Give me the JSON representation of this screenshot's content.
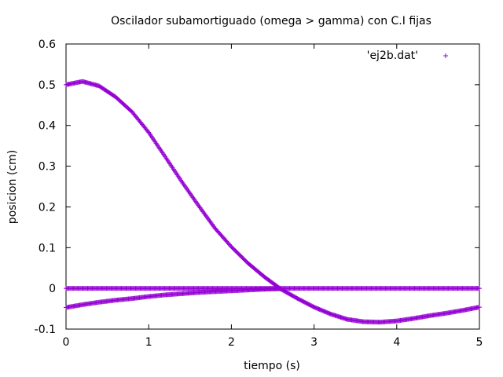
{
  "chart_data": {
    "type": "scatter",
    "title": "Oscilador subamortiguado (omega > gamma) con C.I fijas",
    "xlabel": "tiempo (s)",
    "ylabel": "posicion (cm)",
    "xlim": [
      0,
      5
    ],
    "ylim": [
      -0.1,
      0.6
    ],
    "x_ticks": [
      "0",
      "1",
      "2",
      "3",
      "4",
      "5"
    ],
    "y_ticks": [
      "-0.1",
      "0",
      "0.1",
      "0.2",
      "0.3",
      "0.4",
      "0.5",
      "0.6"
    ],
    "grid": false,
    "legend_position": "top-right",
    "marker": "+",
    "color": "#9400d3",
    "series": [
      {
        "name": "'ej2b.dat'",
        "x": [
          0,
          0.2,
          0.4,
          0.6,
          0.8,
          1.0,
          1.2,
          1.4,
          1.6,
          1.8,
          2.0,
          2.2,
          2.4,
          2.6,
          2.8,
          3.0,
          3.2,
          3.4,
          3.6,
          3.8,
          4.0,
          4.2,
          4.4,
          4.6,
          4.8,
          5.0
        ],
        "y": [
          0.5,
          0.508,
          0.497,
          0.47,
          0.433,
          0.383,
          0.323,
          0.262,
          0.204,
          0.148,
          0.102,
          0.062,
          0.028,
          -0.002,
          -0.025,
          -0.046,
          -0.063,
          -0.076,
          -0.082,
          -0.083,
          -0.08,
          -0.074,
          -0.067,
          -0.061,
          -0.054,
          -0.046
        ]
      },
      {
        "name": "",
        "x": [
          0,
          0.5,
          1.0,
          1.5,
          2.0,
          2.5,
          3.0,
          3.5,
          4.0,
          4.5,
          5.0
        ],
        "y": [
          0,
          0,
          0,
          0,
          0,
          0,
          0,
          0,
          0,
          0,
          0
        ]
      },
      {
        "name": "",
        "x": [
          0,
          0.2,
          0.4,
          0.6,
          0.8,
          1.0,
          1.2,
          1.4,
          1.6,
          1.8,
          2.0,
          2.2,
          2.4,
          2.6
        ],
        "y": [
          -0.047,
          -0.04,
          -0.034,
          -0.029,
          -0.025,
          -0.02,
          -0.016,
          -0.013,
          -0.01,
          -0.008,
          -0.006,
          -0.004,
          -0.002,
          -0.001
        ]
      }
    ]
  }
}
